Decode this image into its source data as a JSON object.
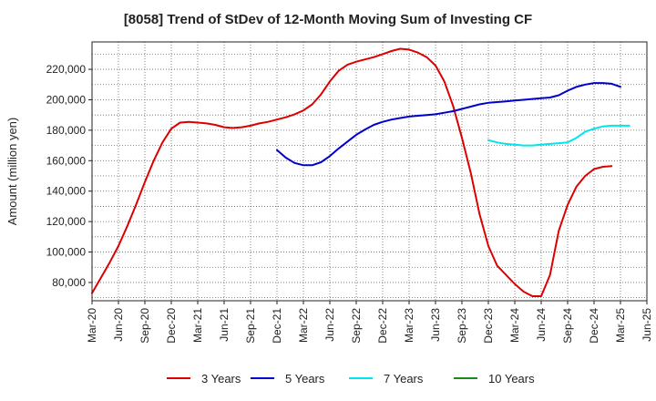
{
  "chart_data": {
    "type": "line",
    "title": "[8058]  Trend of StDev of 12-Month Moving Sum of Investing CF",
    "xlabel": "",
    "ylabel": "Amount (million yen)",
    "ylim": [
      68000,
      238000
    ],
    "y_ticks": [
      80000,
      100000,
      120000,
      140000,
      160000,
      180000,
      200000,
      220000
    ],
    "y_tick_labels": [
      "80,000",
      "100,000",
      "120,000",
      "140,000",
      "160,000",
      "180,000",
      "200,000",
      "220,000"
    ],
    "x_tick_labels": [
      "Mar-20",
      "Jun-20",
      "Sep-20",
      "Dec-20",
      "Mar-21",
      "Jun-21",
      "Sep-21",
      "Dec-21",
      "Mar-22",
      "Jun-22",
      "Sep-22",
      "Dec-22",
      "Mar-23",
      "Jun-23",
      "Sep-23",
      "Dec-23",
      "Mar-24",
      "Jun-24",
      "Sep-24",
      "Dec-24",
      "Mar-25",
      "Jun-25"
    ],
    "grid": true,
    "legend_position": "bottom",
    "series": [
      {
        "name": "3 Years",
        "color": "#dd0000",
        "start": "Mar-20",
        "values": [
          73000,
          83000,
          93000,
          104000,
          117000,
          131000,
          146000,
          160000,
          172000,
          181000,
          185000,
          185500,
          185000,
          184500,
          183500,
          182000,
          181500,
          182000,
          183000,
          184500,
          185500,
          187000,
          188500,
          190500,
          193000,
          197000,
          203500,
          212000,
          219000,
          223000,
          225000,
          226500,
          228000,
          230000,
          232000,
          233500,
          233000,
          231000,
          228000,
          222500,
          212000,
          196000,
          175000,
          152000,
          125000,
          104000,
          91000,
          85000,
          79000,
          74000,
          71000,
          71000,
          85000,
          114000,
          131000,
          143000,
          150000,
          154500,
          156000,
          156500
        ]
      },
      {
        "name": "5 Years",
        "color": "#0000cc",
        "start": "Dec-21",
        "values": [
          167000,
          162000,
          158500,
          157000,
          157000,
          159000,
          163000,
          168000,
          172500,
          177000,
          180500,
          183500,
          185500,
          187000,
          188000,
          189000,
          189500,
          190000,
          190500,
          191500,
          192500,
          194000,
          195500,
          197000,
          198000,
          198500,
          199000,
          199500,
          200000,
          200500,
          201000,
          201500,
          203000,
          206000,
          208500,
          210000,
          211000,
          211000,
          210500,
          208500
        ]
      },
      {
        "name": "7 Years",
        "color": "#00e5ee",
        "start": "Dec-23",
        "values": [
          173500,
          172000,
          171000,
          170500,
          170000,
          170000,
          170500,
          171000,
          171500,
          172000,
          175000,
          179000,
          181000,
          182500,
          183000,
          183000,
          183000
        ]
      },
      {
        "name": "10 Years",
        "color": "#1a8a1a",
        "start": "Mar-25",
        "values": []
      }
    ]
  }
}
